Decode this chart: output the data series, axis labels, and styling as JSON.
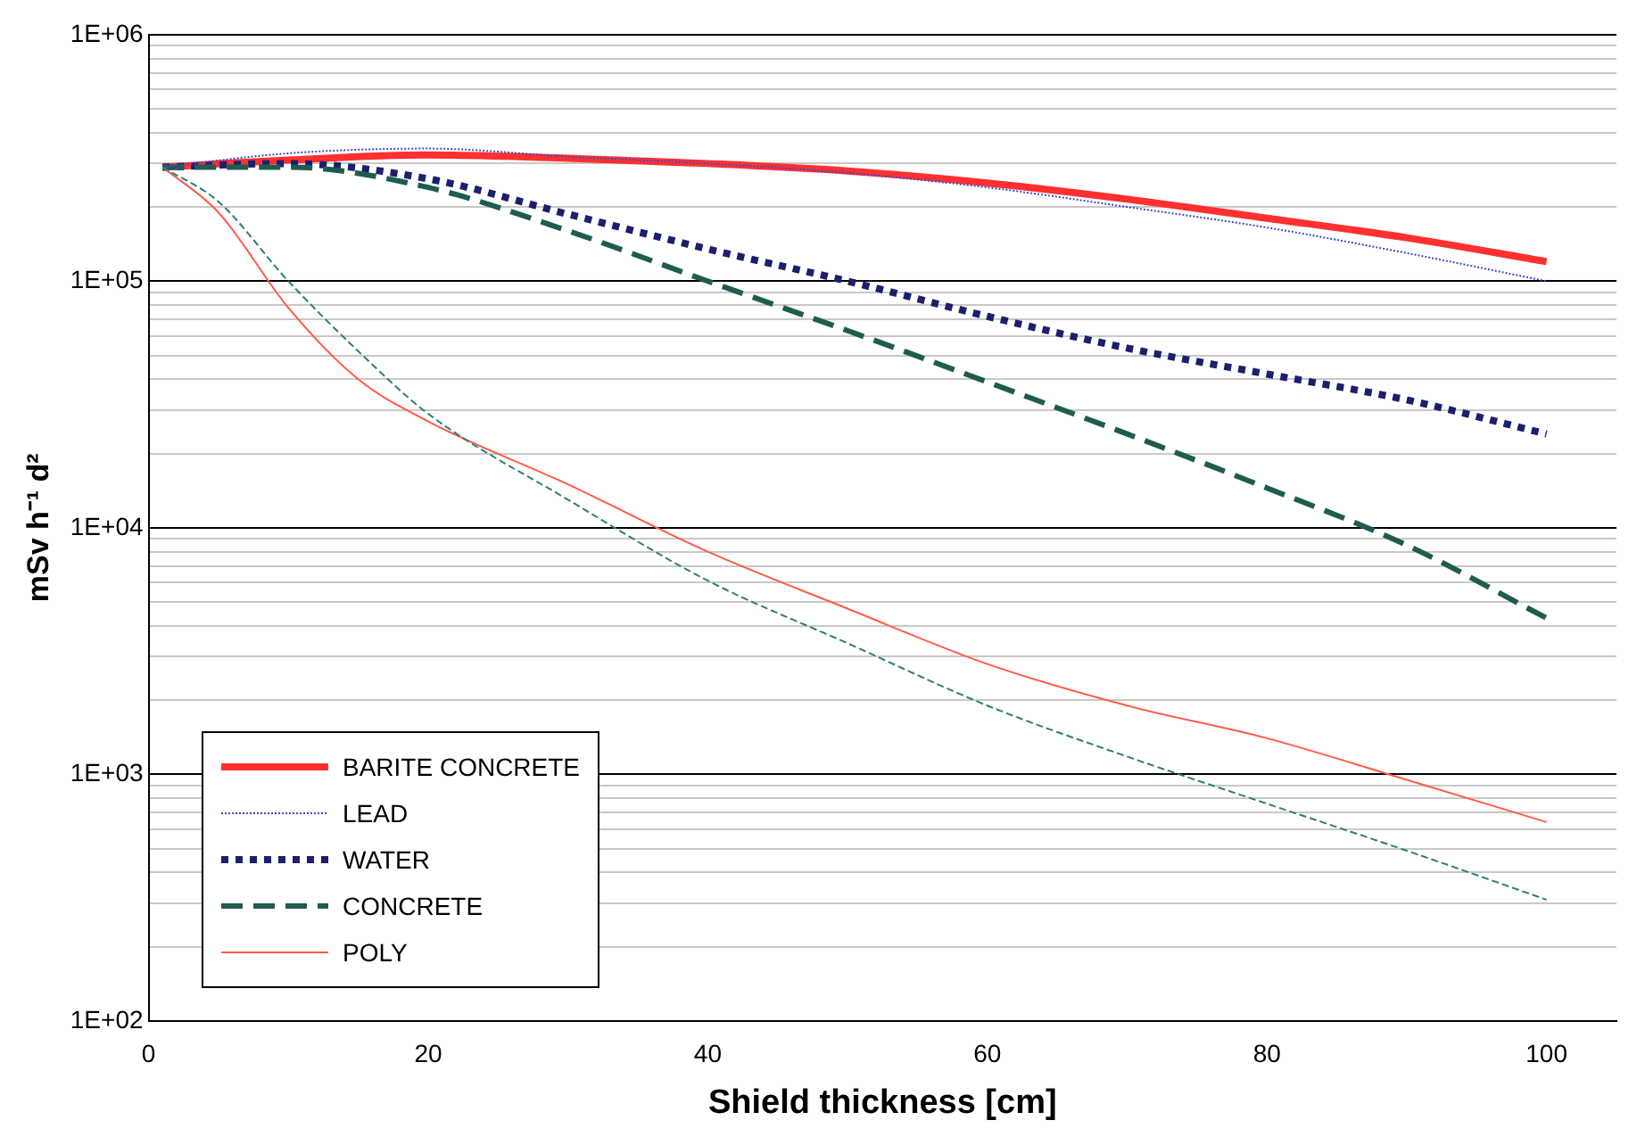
{
  "chart_data": {
    "type": "line",
    "xlabel": "Shield thickness [cm]",
    "ylabel": "mSv h⁻¹ d²",
    "log": "y",
    "grid": "y",
    "legend": "bottom left",
    "marker": "none",
    "xlim": [
      0,
      105
    ],
    "xticks": [
      0,
      20,
      40,
      60,
      80,
      100
    ],
    "ylim": [
      100,
      1000000
    ],
    "yticks": [
      {
        "value": 100,
        "label": "1E+02"
      },
      {
        "value": 200,
        "label": null
      },
      {
        "value": 300,
        "label": null
      },
      {
        "value": 400,
        "label": null
      },
      {
        "value": 500,
        "label": null
      },
      {
        "value": 600,
        "label": null
      },
      {
        "value": 700,
        "label": null
      },
      {
        "value": 800,
        "label": null
      },
      {
        "value": 900,
        "label": null
      },
      {
        "value": 1000,
        "label": "1E+03"
      },
      {
        "value": 2000,
        "label": null
      },
      {
        "value": 3000,
        "label": null
      },
      {
        "value": 4000,
        "label": null
      },
      {
        "value": 5000,
        "label": null
      },
      {
        "value": 6000,
        "label": null
      },
      {
        "value": 7000,
        "label": null
      },
      {
        "value": 8000,
        "label": null
      },
      {
        "value": 9000,
        "label": null
      },
      {
        "value": 10000,
        "label": "1E+04"
      },
      {
        "value": 20000,
        "label": null
      },
      {
        "value": 30000,
        "label": null
      },
      {
        "value": 40000,
        "label": null
      },
      {
        "value": 50000,
        "label": null
      },
      {
        "value": 60000,
        "label": null
      },
      {
        "value": 70000,
        "label": null
      },
      {
        "value": 80000,
        "label": null
      },
      {
        "value": 90000,
        "label": null
      },
      {
        "value": 100000,
        "label": "1E+05"
      },
      {
        "value": 200000,
        "label": null
      },
      {
        "value": 300000,
        "label": null
      },
      {
        "value": 400000,
        "label": null
      },
      {
        "value": 500000,
        "label": null
      },
      {
        "value": 600000,
        "label": null
      },
      {
        "value": 700000,
        "label": null
      },
      {
        "value": 800000,
        "label": null
      },
      {
        "value": 900000,
        "label": null
      },
      {
        "value": 1000000,
        "label": "1E+06"
      }
    ],
    "series": [
      {
        "name": "BARITE CONCRETE",
        "color": "#ff3030",
        "line_style": "solid",
        "x": [
          1,
          10,
          20,
          30,
          40,
          50,
          60,
          70,
          80,
          90,
          100
        ],
        "values": [
          290000,
          310000,
          325000,
          315000,
          300000,
          280000,
          250000,
          215000,
          180000,
          150000,
          120000
        ]
      },
      {
        "name": "LEAD",
        "color": "#3a4ad0",
        "line_style": "dotted",
        "x": [
          1,
          10,
          20,
          30,
          40,
          50,
          60,
          70,
          80,
          90,
          100
        ],
        "values": [
          290000,
          330000,
          345000,
          320000,
          300000,
          275000,
          240000,
          200000,
          165000,
          130000,
          100000
        ]
      },
      {
        "name": "WATER",
        "color": "#1c1f6e",
        "line_style": "dotted",
        "x": [
          1,
          10,
          20,
          30,
          40,
          50,
          60,
          70,
          80,
          90,
          100
        ],
        "values": [
          290000,
          300000,
          260000,
          187000,
          135000,
          100000,
          72000,
          53500,
          42000,
          33000,
          24000
        ]
      },
      {
        "name": "CONCRETE",
        "color": "#1f5c50",
        "line_style": "dashed",
        "x": [
          1,
          10,
          20,
          30,
          40,
          50,
          60,
          70,
          80,
          90,
          100
        ],
        "values": [
          290000,
          290000,
          240000,
          160000,
          100000,
          63000,
          39000,
          24000,
          14500,
          8500,
          4300
        ]
      },
      {
        "name": "POLY",
        "color": "#ff5a4a",
        "line_style": "solid",
        "x": [
          1,
          5,
          10,
          15,
          20,
          30,
          40,
          50,
          60,
          70,
          80,
          90,
          100
        ],
        "values": [
          290000,
          190000,
          78000,
          40000,
          27000,
          15000,
          8000,
          4700,
          2800,
          1900,
          1400,
          950,
          640
        ]
      },
      {
        "color": "#2f7f72",
        "line_style": "dashed",
        "x": [
          1,
          5,
          10,
          15,
          20,
          30,
          40,
          50,
          60,
          70,
          80,
          90,
          100
        ],
        "values": [
          290000,
          210000,
          100000,
          52000,
          29000,
          13000,
          6100,
          3400,
          1900,
          1180,
          760,
          490,
          310
        ]
      }
    ]
  }
}
